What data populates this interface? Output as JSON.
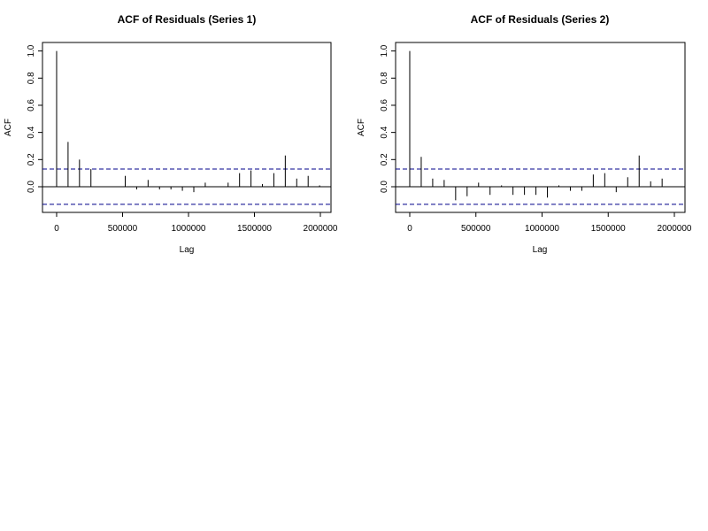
{
  "chart_data": [
    {
      "type": "bar",
      "title": "ACF of Residuals (Series 1)",
      "xlabel": "Lag",
      "ylabel": "ACF",
      "xlim": [
        -20000,
        2000000
      ],
      "ylim": [
        -0.15,
        1.03
      ],
      "x_ticks": [
        0,
        500000,
        1000000,
        1500000,
        2000000
      ],
      "x_tick_labels": [
        "0",
        "500000",
        "1000000",
        "1500000",
        "2000000"
      ],
      "y_ticks": [
        0.0,
        0.2,
        0.4,
        0.6,
        0.8,
        1.0
      ],
      "y_tick_labels": [
        "0.0",
        "0.2",
        "0.4",
        "0.6",
        "0.8",
        "1.0"
      ],
      "confidence_band": [
        0.13,
        -0.13
      ],
      "x": [
        0,
        86700,
        173400,
        260100,
        346800,
        433500,
        520200,
        606900,
        693600,
        780300,
        867000,
        953700,
        1040400,
        1127100,
        1213800,
        1300500,
        1387200,
        1473900,
        1560600,
        1647300,
        1734000,
        1820700,
        1907400,
        1994100
      ],
      "values": [
        1.0,
        0.33,
        0.2,
        0.13,
        0.0,
        0.0,
        0.08,
        -0.02,
        0.05,
        -0.02,
        -0.02,
        -0.03,
        -0.04,
        0.03,
        0.0,
        0.03,
        0.1,
        0.12,
        0.02,
        0.1,
        0.23,
        0.06,
        0.08,
        0.01
      ],
      "grid": false,
      "colors": {
        "bars": "#000000",
        "band": "#00008b",
        "zero_line": "#000000"
      }
    },
    {
      "type": "bar",
      "title": "ACF of Residuals (Series 2)",
      "xlabel": "Lag",
      "ylabel": "ACF",
      "xlim": [
        -20000,
        2000000
      ],
      "ylim": [
        -0.15,
        1.03
      ],
      "x_ticks": [
        0,
        500000,
        1000000,
        1500000,
        2000000
      ],
      "x_tick_labels": [
        "0",
        "500000",
        "1000000",
        "1500000",
        "2000000"
      ],
      "y_ticks": [
        0.0,
        0.2,
        0.4,
        0.6,
        0.8,
        1.0
      ],
      "y_tick_labels": [
        "0.0",
        "0.2",
        "0.4",
        "0.6",
        "0.8",
        "1.0"
      ],
      "confidence_band": [
        0.13,
        -0.13
      ],
      "x": [
        0,
        86700,
        173400,
        260100,
        346800,
        433500,
        520200,
        606900,
        693600,
        780300,
        867000,
        953700,
        1040400,
        1127100,
        1213800,
        1300500,
        1387200,
        1473900,
        1560600,
        1647300,
        1734000,
        1820700,
        1907400
      ],
      "values": [
        1.0,
        0.22,
        0.06,
        0.05,
        -0.1,
        -0.07,
        0.03,
        -0.06,
        0.01,
        -0.06,
        -0.06,
        -0.06,
        -0.08,
        0.01,
        -0.03,
        -0.03,
        0.09,
        0.1,
        -0.04,
        0.07,
        0.23,
        0.04,
        0.06
      ],
      "grid": false,
      "colors": {
        "bars": "#000000",
        "band": "#00008b",
        "zero_line": "#000000"
      }
    }
  ]
}
